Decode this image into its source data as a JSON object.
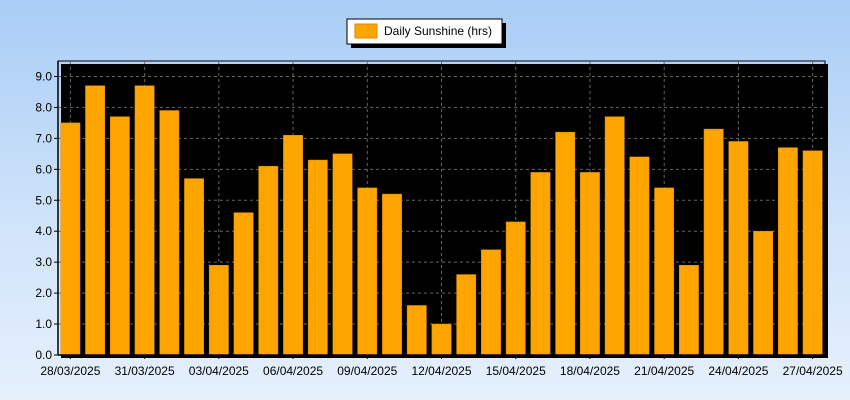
{
  "chart_data": {
    "type": "bar",
    "legend": {
      "label": "Daily Sunshine (hrs)",
      "placement": "top-center"
    },
    "colors": {
      "bar": "#ffa500",
      "bar_edge": "#e08a00",
      "background_top": "#a9cdf6",
      "background_bottom": "#e6f0fd",
      "grid": "#666666"
    },
    "grid": true,
    "ylim": [
      0,
      9.5
    ],
    "y_ticks": [
      "0.0",
      "1.0",
      "2.0",
      "3.0",
      "4.0",
      "5.0",
      "6.0",
      "7.0",
      "8.0",
      "9.0"
    ],
    "x_tick_labels": [
      "28/03/2025",
      "31/03/2025",
      "03/04/2025",
      "06/04/2025",
      "09/04/2025",
      "12/04/2025",
      "15/04/2025",
      "18/04/2025",
      "21/04/2025",
      "24/04/2025",
      "27/04/2025"
    ],
    "categories": [
      "28/03/2025",
      "29/03/2025",
      "30/03/2025",
      "31/03/2025",
      "01/04/2025",
      "02/04/2025",
      "03/04/2025",
      "04/04/2025",
      "05/04/2025",
      "06/04/2025",
      "07/04/2025",
      "08/04/2025",
      "09/04/2025",
      "10/04/2025",
      "11/04/2025",
      "12/04/2025",
      "13/04/2025",
      "14/04/2025",
      "15/04/2025",
      "16/04/2025",
      "17/04/2025",
      "18/04/2025",
      "19/04/2025",
      "20/04/2025",
      "21/04/2025",
      "22/04/2025",
      "23/04/2025",
      "24/04/2025",
      "25/04/2025",
      "26/04/2025",
      "27/04/2025"
    ],
    "values": [
      7.5,
      8.7,
      7.7,
      8.7,
      7.9,
      5.7,
      2.9,
      4.6,
      6.1,
      7.1,
      6.3,
      6.5,
      5.4,
      5.2,
      1.6,
      1.0,
      2.6,
      3.4,
      4.3,
      5.9,
      7.2,
      5.9,
      7.7,
      6.4,
      5.4,
      2.9,
      7.3,
      6.9,
      4.0,
      6.7,
      6.6
    ]
  }
}
